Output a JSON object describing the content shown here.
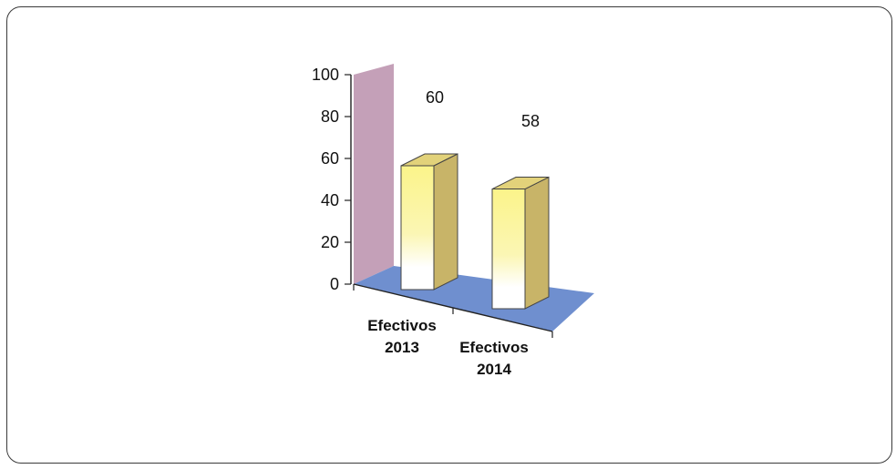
{
  "chart_data": {
    "type": "bar",
    "categories": [
      [
        "Efectivos",
        "2013"
      ],
      [
        "Efectivos",
        "2014"
      ]
    ],
    "values": [
      60,
      58
    ],
    "data_labels": [
      "60",
      "58"
    ],
    "ylim": [
      0,
      100
    ],
    "yticks": [
      "0",
      "20",
      "40",
      "60",
      "80",
      "100"
    ],
    "grid": false,
    "legend": "none",
    "style": "3d",
    "colors": {
      "back_wall": "#c4a0b8",
      "floor": "#6f8fcf",
      "bar_top": "#fbf48a",
      "bar_bottom": "#ffffff",
      "bar_side": "#c8b468",
      "bar_cap": "#e2d27a"
    }
  }
}
